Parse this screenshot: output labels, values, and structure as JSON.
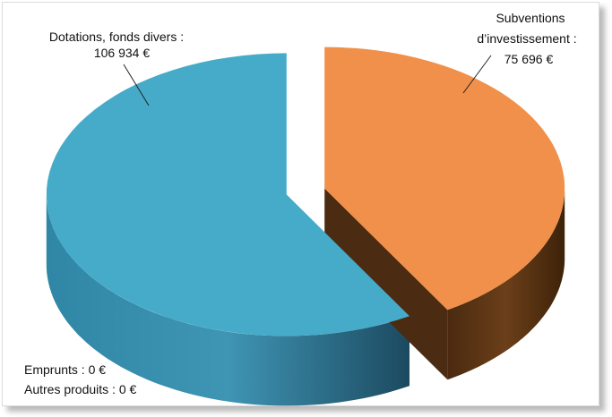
{
  "chart_data": {
    "type": "pie",
    "style": "3d-exploded",
    "slices": [
      {
        "name": "Dotations, fonds divers",
        "value": 106934,
        "display": "106 934 €",
        "color": "#45abc9",
        "side_color": "#2d7c98"
      },
      {
        "name": "Subventions d'investissement",
        "value": 75696,
        "display": "75 696 €",
        "color": "#f0904a",
        "side_color": "#5a3516"
      },
      {
        "name": "Emprunts",
        "value": 0,
        "display": "0 €"
      },
      {
        "name": "Autres produits",
        "value": 0,
        "display": "0 €"
      }
    ],
    "labels": {
      "dotations_line1": "Dotations, fonds divers :",
      "dotations_line2": "106 934 €",
      "subventions_line1": "Subventions",
      "subventions_line2": "d’investissement :",
      "subventions_line3": "75 696 €",
      "emprunts": "Emprunts : 0 €",
      "autres": "Autres produits : 0 €"
    }
  }
}
